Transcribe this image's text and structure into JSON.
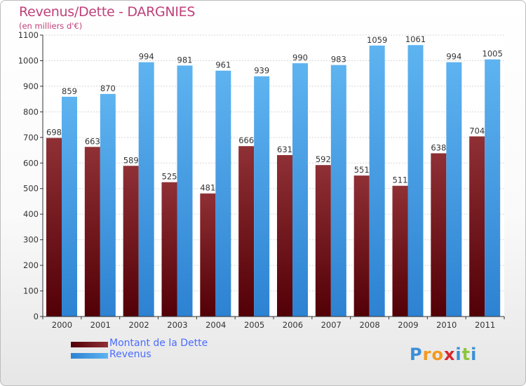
{
  "header": {
    "title": "Revenus/Dette - DARGNIES",
    "subtitle": "(en milliers d'€)"
  },
  "chart_data": {
    "type": "bar",
    "title": "Revenus/Dette - DARGNIES",
    "subtitle": "(en milliers d'€)",
    "categories": [
      "2000",
      "2001",
      "2002",
      "2003",
      "2004",
      "2005",
      "2006",
      "2007",
      "2008",
      "2009",
      "2010",
      "2011"
    ],
    "series": [
      {
        "name": "Montant de la Dette",
        "color": "#6e0f12",
        "values": [
          698,
          663,
          589,
          525,
          481,
          666,
          631,
          592,
          551,
          511,
          638,
          704
        ]
      },
      {
        "name": "Revenus",
        "color": "#3e9ee6",
        "values": [
          859,
          870,
          994,
          981,
          961,
          939,
          990,
          983,
          1059,
          1061,
          994,
          1005
        ]
      }
    ],
    "ylim": [
      0,
      1100
    ],
    "yticks": [
      0,
      100,
      200,
      300,
      400,
      500,
      600,
      700,
      800,
      900,
      1000,
      1100
    ],
    "grid": true,
    "legend_position": "bottom-left"
  },
  "legend": {
    "items": [
      {
        "label": "Montant de la Dette",
        "color": "#6e0f12"
      },
      {
        "label": "Revenus",
        "color": "#3e9ee6"
      }
    ]
  },
  "logo": {
    "text": "Proxiti",
    "letters": [
      "P",
      "r",
      "o",
      "x",
      "i",
      "t",
      "i"
    ],
    "colors": [
      "#3a8fd8",
      "#f39a1e",
      "#f39a1e",
      "#d9272e",
      "#3a8fd8",
      "#8cc63f",
      "#3a8fd8"
    ]
  }
}
